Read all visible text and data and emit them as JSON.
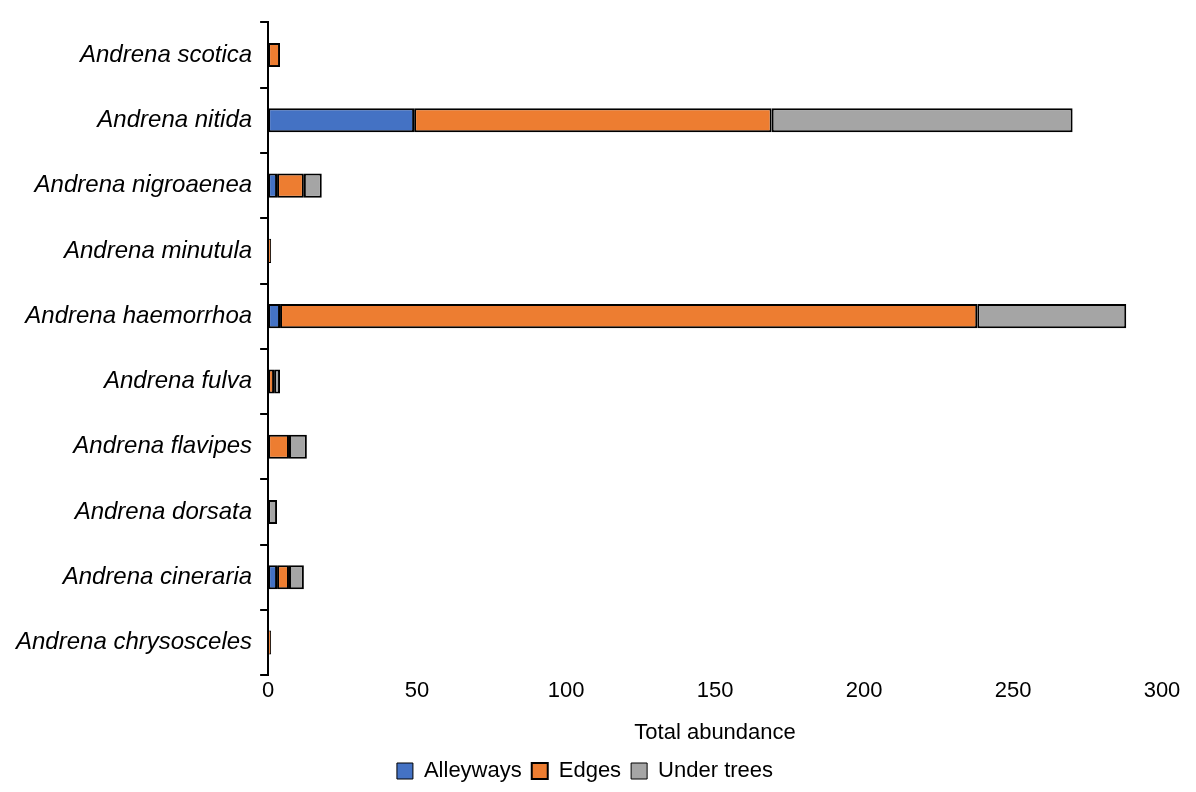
{
  "chart_data": {
    "type": "bar",
    "orientation": "horizontal",
    "stacked": true,
    "xlabel": "Total abundance",
    "categories": [
      "Andrena scotica",
      "Andrena nitida",
      "Andrena nigroaenea",
      "Andrena minutula",
      "Andrena haemorrhoa",
      "Andrena fulva",
      "Andrena flavipes",
      "Andrena dorsata",
      "Andrena cineraria",
      "Andrena chrysosceles"
    ],
    "series": [
      {
        "name": "Alleyways",
        "color": "#4472c4",
        "values": [
          null,
          49,
          3,
          null,
          4,
          null,
          null,
          null,
          3,
          null
        ]
      },
      {
        "name": "Edges",
        "color": "#ed7d31",
        "values": [
          4,
          120,
          9,
          1,
          234,
          2,
          7,
          null,
          4,
          1
        ]
      },
      {
        "name": "Under trees",
        "color": "#a5a5a5",
        "values": [
          null,
          101,
          6,
          null,
          50,
          2,
          6,
          3,
          5,
          null
        ]
      }
    ],
    "xlim": [
      0,
      300
    ],
    "xticks": [
      0,
      50,
      100,
      150,
      200,
      250,
      300
    ],
    "grid": false,
    "legend": "bottom"
  }
}
